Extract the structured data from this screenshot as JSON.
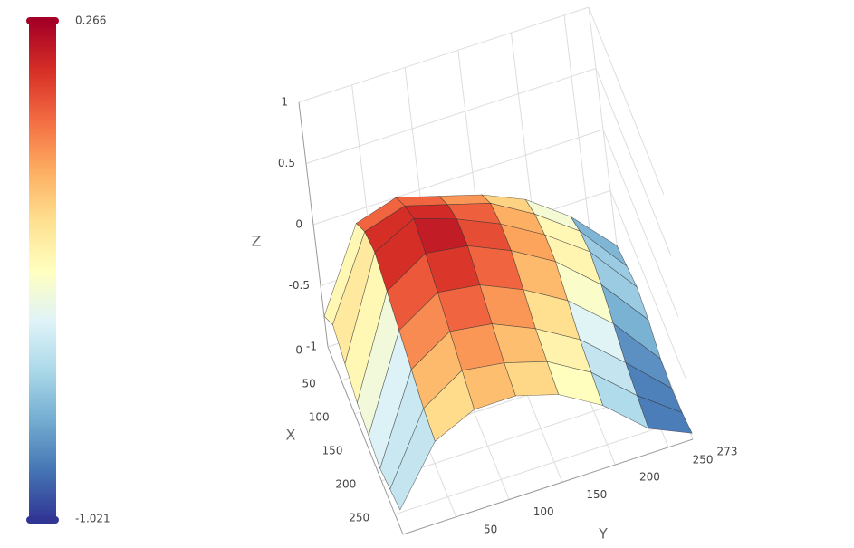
{
  "chart_data": {
    "type": "surface",
    "x": [
      0,
      40,
      80,
      120,
      160,
      200,
      240,
      280
    ],
    "y": [
      0,
      39,
      78,
      117,
      156,
      195,
      234,
      273
    ],
    "z": [
      [
        -0.75,
        -0.1,
        0.0,
        -0.1,
        -0.2,
        -0.35,
        -0.6,
        -0.95
      ],
      [
        -0.6,
        0.05,
        0.15,
        0.05,
        -0.05,
        -0.25,
        -0.5,
        -0.9
      ],
      [
        -0.7,
        0.1,
        0.266,
        0.15,
        0.0,
        -0.2,
        -0.45,
        -0.85
      ],
      [
        -0.8,
        0.0,
        0.2,
        0.15,
        0.0,
        -0.2,
        -0.5,
        -0.9
      ],
      [
        -0.85,
        -0.1,
        0.1,
        0.05,
        -0.1,
        -0.3,
        -0.6,
        -1.0
      ],
      [
        -0.9,
        -0.2,
        0.0,
        -0.05,
        -0.2,
        -0.4,
        -0.7,
        -1.021
      ],
      [
        -0.85,
        -0.3,
        -0.1,
        -0.15,
        -0.25,
        -0.45,
        -0.75,
        -1.0
      ],
      [
        -0.8,
        -0.35,
        -0.2,
        -0.2,
        -0.3,
        -0.5,
        -0.8,
        -0.95
      ]
    ],
    "xlim": [
      0,
      280
    ],
    "ylim": [
      0,
      273
    ],
    "zlim": [
      -1,
      1
    ],
    "xticks": [
      0,
      50,
      100,
      150,
      200,
      250
    ],
    "yticks": [
      50,
      100,
      150,
      200,
      250,
      273
    ],
    "zticks": [
      -1,
      -0.5,
      0,
      0.5,
      1
    ],
    "xlabel": "X",
    "ylabel": "Y",
    "zlabel": "Z",
    "cmin": -1.021,
    "cmax": 0.266,
    "colorscale": [
      "#313695",
      "#4575b4",
      "#74add1",
      "#abd9e9",
      "#e0f3f8",
      "#ffffbf",
      "#fee090",
      "#fdae61",
      "#f46d43",
      "#d73027",
      "#a50026"
    ],
    "grid": true
  }
}
